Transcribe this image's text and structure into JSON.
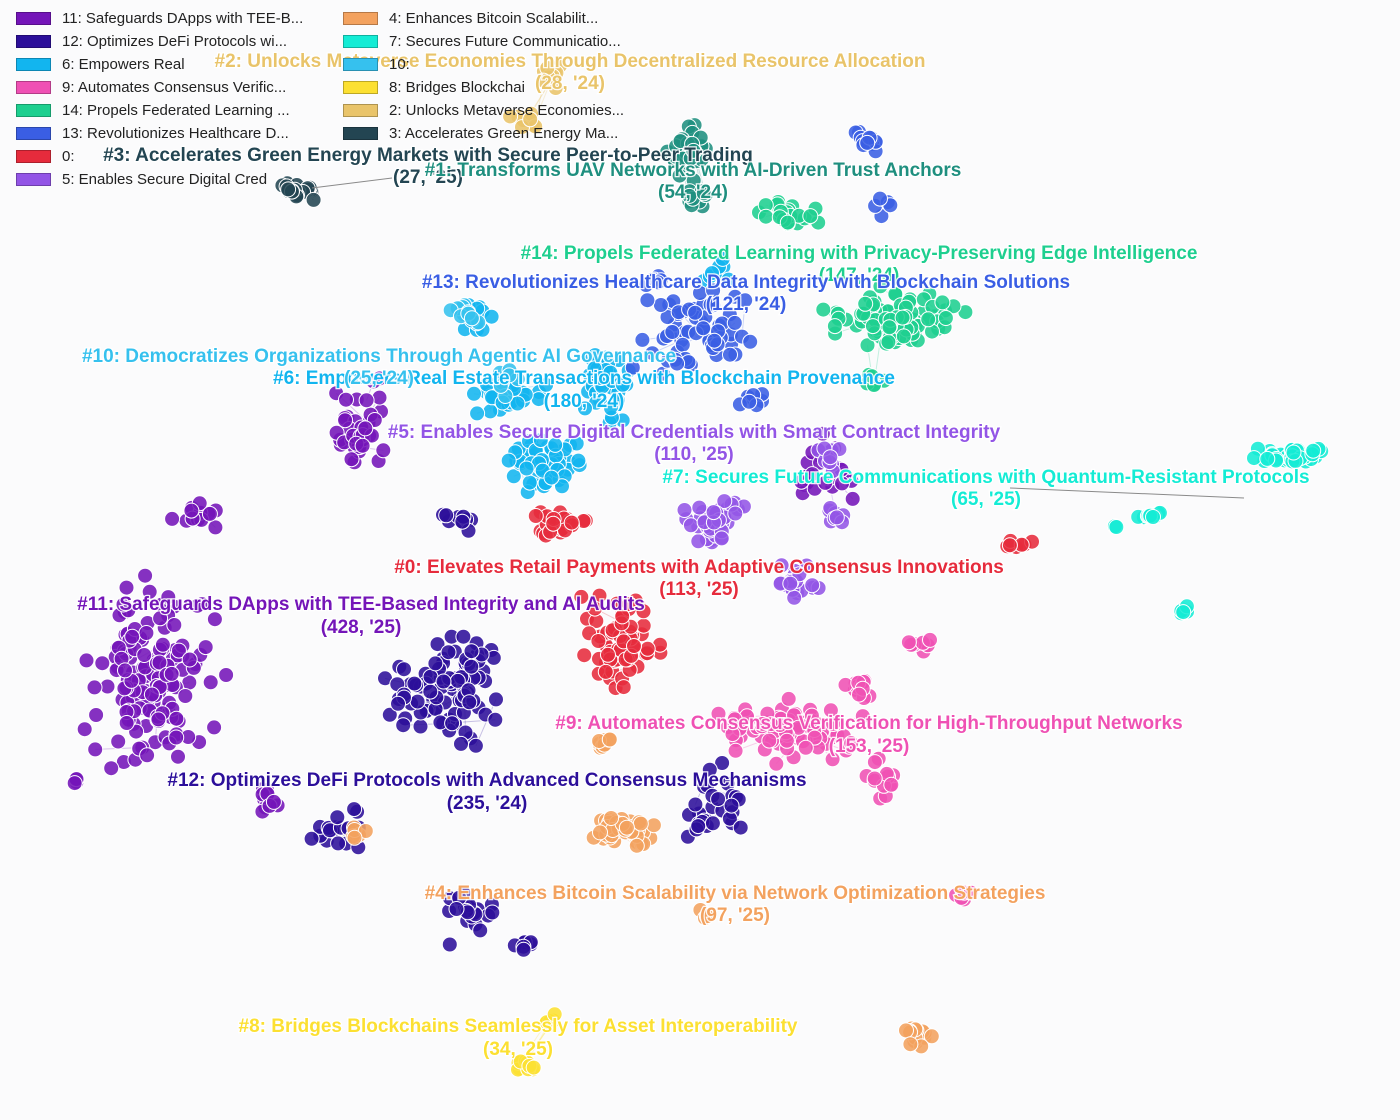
{
  "chart_data": {
    "type": "scatter",
    "title": "",
    "xlabel": "",
    "ylabel": "",
    "grid": false,
    "legend_position": "top-left",
    "legend": [
      {
        "text": "11: Safeguards DApps with TEE-B...",
        "color": "#7415b8"
      },
      {
        "text": "12: Optimizes DeFi Protocols wi...",
        "color": "#2c0f9a"
      },
      {
        "text": "6: Empowers Real ",
        "color": "#12b5ef"
      },
      {
        "text": "9: Automates Consensus Verific...",
        "color": "#ef51b4"
      },
      {
        "text": "14: Propels Federated Learning ...",
        "color": "#1ecf8f"
      },
      {
        "text": "13: Revolutionizes Healthcare D...",
        "color": "#3a5ee4"
      },
      {
        "text": "0: ",
        "color": "#e62b3c"
      },
      {
        "text": "5: Enables Secure Digital Cred",
        "color": "#9355e6"
      },
      {
        "text": "4: Enhances Bitcoin Scalabilit...",
        "color": "#f3a25f"
      },
      {
        "text": "7: Secures Future Communicatio...",
        "color": "#14ecd5"
      },
      {
        "text": "10: ",
        "color": "#36c1ee"
      },
      {
        "text": "8: Bridges Blockchai",
        "color": "#fce032"
      },
      {
        "text": "2: Unlocks Metaverse Economies...",
        "color": "#e9c46a"
      },
      {
        "text": "3: Accelerates Green Energy Ma...",
        "color": "#234552"
      }
    ],
    "series": [
      {
        "name": "#11: Safeguards DApps with TEE-Based Integrity and AI Audits",
        "count_label": "(428, '25)",
        "color": "#7415b8"
      },
      {
        "name": "#12: Optimizes DeFi Protocols with Advanced Consensus Mechanisms",
        "count_label": "(235, '24)",
        "color": "#2c0f9a"
      },
      {
        "name": "#6: Empowers Real Estate Transactions with Blockchain Provenance",
        "count_label": "(180, '24)",
        "color": "#12b5ef"
      },
      {
        "name": "#9: Automates Consensus Verification for High-Throughput Networks",
        "count_label": "(153, '25)",
        "color": "#ef51b4"
      },
      {
        "name": "#14: Propels Federated Learning with Privacy-Preserving Edge Intelligence",
        "count_label": "(147, '24)",
        "color": "#1ecf8f"
      },
      {
        "name": "#13: Revolutionizes Healthcare Data Integrity with Blockchain Solutions",
        "count_label": "(121, '24)",
        "color": "#3a5ee4"
      },
      {
        "name": "#0: Elevates Retail Payments with Adaptive Consensus Innovations",
        "count_label": "(113, '25)",
        "color": "#e62b3c"
      },
      {
        "name": "#5: Enables Secure Digital Credentials with Smart Contract Integrity",
        "count_label": "(110, '25)",
        "color": "#9355e6"
      },
      {
        "name": "#4: Enhances Bitcoin Scalability via Network Optimization Strategies",
        "count_label": "(97, '25)",
        "color": "#f3a25f"
      },
      {
        "name": "#7: Secures Future Communications with Quantum-Resistant Protocols",
        "count_label": "(65, '25)",
        "color": "#14ecd5"
      },
      {
        "name": "#10: Democratizes Organizations Through Agentic AI Governance",
        "count_label": "(25, '24)",
        "color": "#36c1ee"
      },
      {
        "name": "#8: Bridges Blockchains Seamlessly for Asset Interoperability",
        "count_label": "(34, '25)",
        "color": "#fce032"
      },
      {
        "name": "#2: Unlocks Metaverse Economies Through Decentralized Resource Allocation",
        "count_label": "(28, '24)",
        "color": "#e9c46a"
      },
      {
        "name": "#3: Accelerates Green Energy Markets with Secure Peer-to-Peer Trading",
        "count_label": "(27, '25)",
        "color": "#234552"
      },
      {
        "name": "#1: Transforms UAV Networks with AI-Driven Trust Anchors",
        "count_label": "(54, '24)",
        "color": "#1f8f7f"
      }
    ]
  }
}
